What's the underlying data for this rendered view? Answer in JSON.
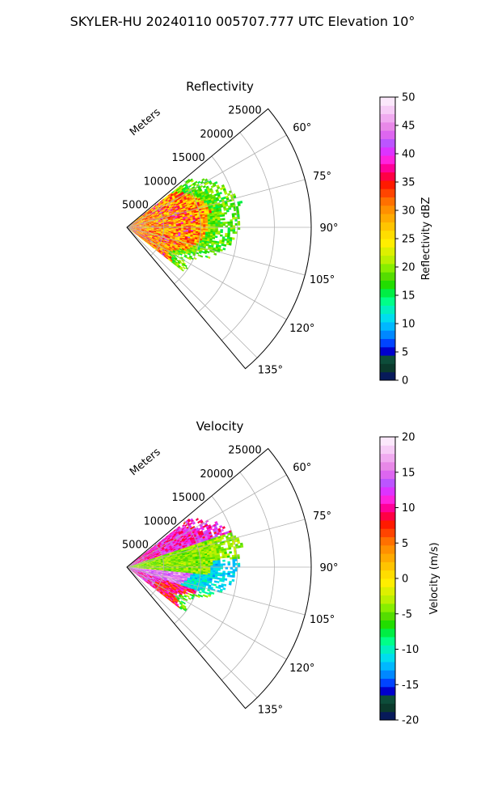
{
  "figure": {
    "suptitle": "SKYLER-HU  20240110  005707.777 UTC Elevation 10°"
  },
  "chart_data": [
    {
      "type": "heatmap",
      "subtype": "polar-sector-ppi",
      "title": "Reflectivity",
      "radial_label": "Meters",
      "radial_ticks": [
        "5000",
        "10000",
        "15000",
        "20000",
        "25000"
      ],
      "radial_tick_values": [
        5000,
        10000,
        15000,
        20000,
        25000
      ],
      "rlim": [
        0,
        25000
      ],
      "azimuth_range_deg": [
        50,
        140
      ],
      "angular_ticks": [
        "60°",
        "75°",
        "90°",
        "105°",
        "120°",
        "135°"
      ],
      "angular_tick_values": [
        60,
        75,
        90,
        105,
        120,
        135
      ],
      "grid": true,
      "colorbar": {
        "label": "Reflectivity dBZ",
        "range": [
          0,
          50
        ],
        "ticks": [
          "0",
          "5",
          "10",
          "15",
          "20",
          "25",
          "30",
          "35",
          "40",
          "45",
          "50"
        ],
        "tick_values": [
          0,
          5,
          10,
          15,
          20,
          25,
          30,
          35,
          40,
          45,
          50
        ],
        "colors": [
          "#071a5a",
          "#0b3a2c",
          "#0d4d3a",
          "#0000cc",
          "#0044ff",
          "#0088ff",
          "#00b8ff",
          "#00ddee",
          "#00f0c0",
          "#00ff88",
          "#00ee44",
          "#22dd00",
          "#55dd00",
          "#88ee00",
          "#bbf000",
          "#ddf000",
          "#ffee00",
          "#ffdd00",
          "#ffc400",
          "#ffaa00",
          "#ff9000",
          "#ff7000",
          "#ff4400",
          "#ff1a00",
          "#ff0044",
          "#ff0099",
          "#ff22dd",
          "#dd33ff",
          "#bb55ff",
          "#dd66f0",
          "#e888e8",
          "#f0aaf0",
          "#f6ccf6",
          "#fbe8fb"
        ]
      },
      "data_summary": {
        "range_extent_m": 16000,
        "dominant_dbz": [
          20,
          35
        ],
        "outer_edge_dbz": [
          15,
          22
        ],
        "core_dbz": [
          35,
          42
        ]
      }
    },
    {
      "type": "heatmap",
      "subtype": "polar-sector-ppi",
      "title": "Velocity",
      "radial_label": "Meters",
      "radial_ticks": [
        "5000",
        "10000",
        "15000",
        "20000",
        "25000"
      ],
      "radial_tick_values": [
        5000,
        10000,
        15000,
        20000,
        25000
      ],
      "rlim": [
        0,
        25000
      ],
      "azimuth_range_deg": [
        50,
        140
      ],
      "angular_ticks": [
        "60°",
        "75°",
        "90°",
        "105°",
        "120°",
        "135°"
      ],
      "angular_tick_values": [
        60,
        75,
        90,
        105,
        120,
        135
      ],
      "grid": true,
      "colorbar": {
        "label": "Velocity (m/s)",
        "range": [
          -20,
          20
        ],
        "ticks": [
          "-20",
          "-15",
          "-10",
          "-5",
          "0",
          "5",
          "10",
          "15",
          "20"
        ],
        "tick_values": [
          -20,
          -15,
          -10,
          -5,
          0,
          5,
          10,
          15,
          20
        ],
        "colors": [
          "#071a5a",
          "#0b3a2c",
          "#0d4d3a",
          "#0000cc",
          "#0044ff",
          "#0088ff",
          "#00b8ff",
          "#00ddee",
          "#00f0c0",
          "#00ff88",
          "#00ee44",
          "#22dd00",
          "#55dd00",
          "#88ee00",
          "#bbf000",
          "#ddf000",
          "#ffee00",
          "#ffdd00",
          "#ffc400",
          "#ffaa00",
          "#ff9000",
          "#ff7000",
          "#ff4400",
          "#ff1a00",
          "#ff0044",
          "#ff0099",
          "#ff22dd",
          "#dd33ff",
          "#bb55ff",
          "#dd66f0",
          "#e888e8",
          "#f0aaf0",
          "#f6ccf6",
          "#fbe8fb"
        ]
      },
      "data_summary": {
        "range_extent_m": 16000,
        "north_part_velocity_ms": [
          8,
          15
        ],
        "center_velocity_ms": [
          -6,
          -2
        ],
        "east_part_velocity_ms": [
          -13,
          -10
        ],
        "south_part_velocity_ms": [
          5,
          12
        ]
      }
    }
  ]
}
